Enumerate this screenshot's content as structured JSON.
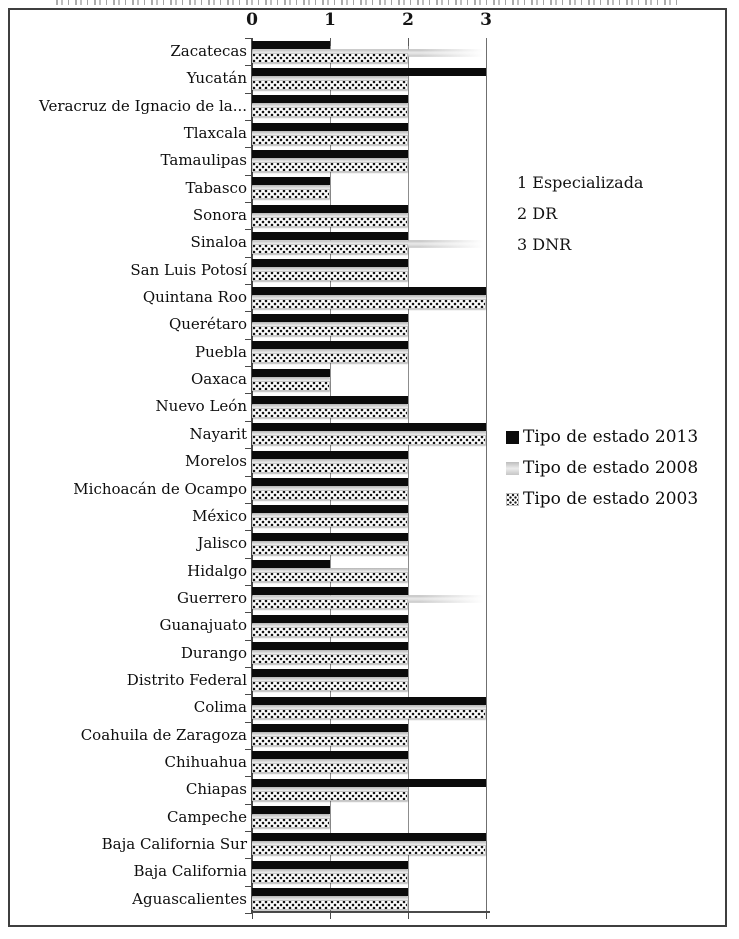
{
  "chart_data": {
    "type": "bar",
    "orientation": "horizontal",
    "x_axis": {
      "position": "top",
      "ticks": [
        "0",
        "1",
        "2",
        "3"
      ],
      "range": [
        0,
        3
      ],
      "grid": true
    },
    "value_notes": [
      "1 Especializada",
      "2 DR",
      "3 DNR"
    ],
    "legend_position": "right",
    "categories": [
      "Zacatecas",
      "Yucatán",
      "Veracruz de Ignacio de la...",
      "Tlaxcala",
      "Tamaulipas",
      "Tabasco",
      "Sonora",
      "Sinaloa",
      "San Luis Potosí",
      "Quintana Roo",
      "Querétaro",
      "Puebla",
      "Oaxaca",
      "Nuevo León",
      "Nayarit",
      "Morelos",
      "Michoacán de Ocampo",
      "México",
      "Jalisco",
      "Hidalgo",
      "Guerrero",
      "Guanajuato",
      "Durango",
      "Distrito Federal",
      "Colima",
      "Coahuila de Zaragoza",
      "Chihuahua",
      "Chiapas",
      "Campeche",
      "Baja California Sur",
      "Baja California",
      "Aguascalientes"
    ],
    "series": [
      {
        "name": "Tipo de estado 2013",
        "style": "solid-black",
        "color": "#0b0b0b",
        "values": [
          1,
          3,
          2,
          2,
          2,
          1,
          2,
          2,
          2,
          3,
          2,
          2,
          1,
          2,
          3,
          2,
          2,
          2,
          2,
          1,
          2,
          2,
          2,
          2,
          3,
          2,
          2,
          3,
          1,
          3,
          2,
          2
        ]
      },
      {
        "name": "Tipo de estado 2008",
        "style": "light-gray",
        "color": "#d5d5d5",
        "values": [
          3,
          2,
          2,
          2,
          2,
          1,
          2,
          3,
          2,
          3,
          2,
          2,
          1,
          2,
          3,
          2,
          2,
          2,
          2,
          2,
          3,
          2,
          2,
          2,
          3,
          2,
          2,
          2,
          1,
          3,
          2,
          2
        ]
      },
      {
        "name": "Tipo de estado 2003",
        "style": "dotted-pattern",
        "color": "#ffffff",
        "values": [
          2,
          2,
          2,
          2,
          2,
          1,
          2,
          2,
          2,
          3,
          2,
          2,
          1,
          2,
          3,
          2,
          2,
          2,
          2,
          2,
          2,
          2,
          2,
          2,
          3,
          2,
          2,
          2,
          1,
          3,
          2,
          2
        ]
      }
    ]
  }
}
